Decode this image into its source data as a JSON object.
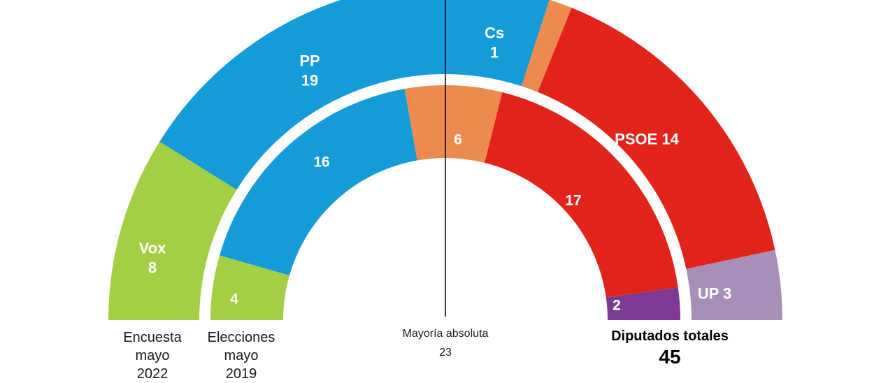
{
  "chart_data": {
    "type": "hemicycle",
    "description": "Semicircular parliament seat chart with two concentric rings (poll May 2022 outer, election May 2019 inner)",
    "total_seats": 45,
    "footer": {
      "majority_label": "Mayoría absoluta",
      "majority_value": "23",
      "total_label": "Diputados totales",
      "total_value": "45"
    },
    "rings": [
      {
        "name": "Encuesta mayo 2022",
        "caption": "Encuesta\nmayo\n2022",
        "segments": [
          {
            "party": "Vox",
            "seats": 8,
            "color": "#a4ce44",
            "label_lines": [
              "Vox",
              "8"
            ]
          },
          {
            "party": "PP",
            "seats": 19,
            "color": "#149bd9",
            "label_lines": [
              "PP",
              "19"
            ]
          },
          {
            "party": "Cs",
            "seats": 1,
            "color": "#ec8a4f",
            "label_lines": [
              "Cs",
              "1"
            ]
          },
          {
            "party": "PSOE",
            "seats": 14,
            "color": "#e2231a",
            "label_lines": [
              "PSOE 14"
            ]
          },
          {
            "party": "UP",
            "seats": 3,
            "color": "#a78fba",
            "label_lines": [
              "UP 3"
            ]
          }
        ]
      },
      {
        "name": "Elecciones mayo 2019",
        "caption": "Elecciones\nmayo\n2019",
        "segments": [
          {
            "party": "Vox",
            "seats": 4,
            "color": "#a4ce44",
            "label_lines": [
              "4"
            ]
          },
          {
            "party": "PP",
            "seats": 16,
            "color": "#149bd9",
            "label_lines": [
              "16"
            ]
          },
          {
            "party": "Cs",
            "seats": 6,
            "color": "#ec8a4f",
            "label_lines": [
              "6"
            ]
          },
          {
            "party": "PSOE",
            "seats": 17,
            "color": "#e2231a",
            "label_lines": [
              "17"
            ]
          },
          {
            "party": "UP",
            "seats": 2,
            "color": "#7b3b92",
            "label_lines": [
              "2"
            ]
          }
        ]
      }
    ]
  }
}
